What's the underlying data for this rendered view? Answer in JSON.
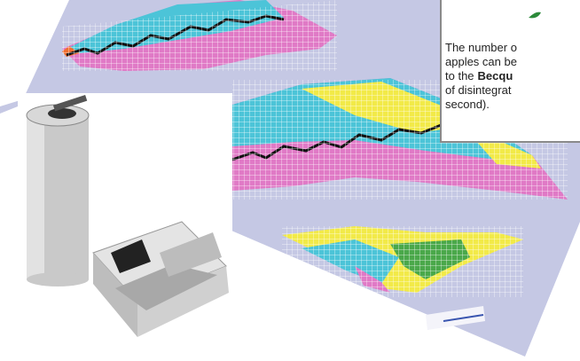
{
  "caption": {
    "line1": "The number o",
    "line2": "apples can be",
    "line3": {
      "plain": "to the",
      "bold": "Becqu"
    },
    "line4": "of disintegrat",
    "line5": "second)."
  }
}
